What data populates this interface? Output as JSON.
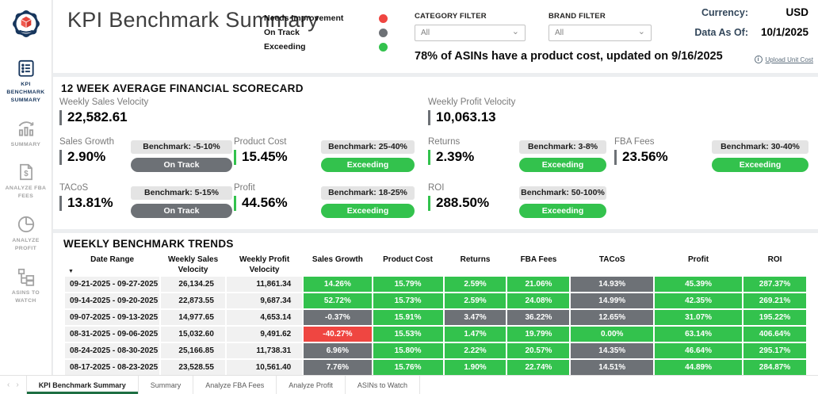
{
  "colors": {
    "green": "#33C24D",
    "gray": "#6D7176",
    "red": "#EF4641",
    "navy": "#17365D",
    "dark_green": "#1E6F43",
    "slate": "#33475B"
  },
  "header": {
    "title": "KPI Benchmark Summary",
    "legend": [
      {
        "label": "Needs Improvement",
        "color": "red"
      },
      {
        "label": "On Track",
        "color": "gray"
      },
      {
        "label": "Exceeding",
        "color": "green"
      }
    ],
    "category_filter": {
      "label": "CATEGORY FILTER",
      "value": "All"
    },
    "brand_filter": {
      "label": "BRAND FILTER",
      "value": "All"
    },
    "currency_label": "Currency:",
    "currency_value": "USD",
    "data_as_of_label": "Data As Of:",
    "data_as_of_value": "10/1/2025",
    "asin_banner": "78% of ASINs have a product cost, updated on 9/16/2025",
    "upload_link": "Upload Unit Cost"
  },
  "sidebar": {
    "items": [
      {
        "label": "KPI BENCHMARK SUMMARY",
        "icon": "clipboard-list-icon",
        "active": true
      },
      {
        "label": "SUMMARY",
        "icon": "bar-chart-icon",
        "active": false
      },
      {
        "label": "ANALYZE FBA FEES",
        "icon": "invoice-dollar-icon",
        "active": false
      },
      {
        "label": "ANALYZE PROFIT",
        "icon": "pie-chart-icon",
        "active": false
      },
      {
        "label": "ASINS TO WATCH",
        "icon": "hierarchy-icon",
        "active": false
      }
    ]
  },
  "scorecard": {
    "title": "12 WEEK AVERAGE FINANCIAL SCORECARD",
    "velocities": [
      {
        "label": "Weekly Sales Velocity",
        "value": "22,582.61",
        "bar": "gray"
      },
      {
        "label": "Weekly Profit Velocity",
        "value": "10,063.13",
        "bar": "gray"
      }
    ],
    "metrics": [
      {
        "label": "Sales Growth",
        "value": "2.90%",
        "bar": "gray",
        "benchmark": "Benchmark: -5-10%",
        "status": "On Track",
        "status_color": "gray"
      },
      {
        "label": "Product Cost",
        "value": "15.45%",
        "bar": "green",
        "benchmark": "Benchmark: 25-40%",
        "status": "Exceeding",
        "status_color": "green"
      },
      {
        "label": "Returns",
        "value": "2.39%",
        "bar": "green",
        "benchmark": "Benchmark: 3-8%",
        "status": "Exceeding",
        "status_color": "green"
      },
      {
        "label": "FBA Fees",
        "value": "23.56%",
        "bar": "gray",
        "benchmark": "Benchmark: 30-40%",
        "status": "Exceeding",
        "status_color": "green"
      },
      {
        "label": "TACoS",
        "value": "13.81%",
        "bar": "gray",
        "benchmark": "Benchmark: 5-15%",
        "status": "On Track",
        "status_color": "gray"
      },
      {
        "label": "Profit",
        "value": "44.56%",
        "bar": "green",
        "benchmark": "Benchmark: 18-25%",
        "status": "Exceeding",
        "status_color": "green"
      },
      {
        "label": "ROI",
        "value": "288.50%",
        "bar": "green",
        "benchmark": "Benchmark: 50-100%",
        "status": "Exceeding",
        "status_color": "green"
      }
    ]
  },
  "trends": {
    "title": "WEEKLY BENCHMARK TRENDS",
    "columns": [
      "Date Range",
      "Weekly Sales Velocity",
      "Weekly Profit Velocity",
      "Sales Growth",
      "Product Cost",
      "Returns",
      "FBA Fees",
      "TACoS",
      "Profit",
      "ROI"
    ],
    "rows": [
      {
        "date": "09-21-2025 - 09-27-2025",
        "wsv": "26,134.25",
        "wpv": "11,861.34",
        "cells": [
          {
            "v": "14.26%",
            "c": "green"
          },
          {
            "v": "15.79%",
            "c": "green"
          },
          {
            "v": "2.59%",
            "c": "green"
          },
          {
            "v": "21.06%",
            "c": "green"
          },
          {
            "v": "14.93%",
            "c": "gray"
          },
          {
            "v": "45.39%",
            "c": "green"
          },
          {
            "v": "287.37%",
            "c": "green"
          }
        ]
      },
      {
        "date": "09-14-2025 - 09-20-2025",
        "wsv": "22,873.55",
        "wpv": "9,687.34",
        "cells": [
          {
            "v": "52.72%",
            "c": "green"
          },
          {
            "v": "15.73%",
            "c": "green"
          },
          {
            "v": "2.59%",
            "c": "green"
          },
          {
            "v": "24.08%",
            "c": "green"
          },
          {
            "v": "14.99%",
            "c": "gray"
          },
          {
            "v": "42.35%",
            "c": "green"
          },
          {
            "v": "269.21%",
            "c": "green"
          }
        ]
      },
      {
        "date": "09-07-2025 - 09-13-2025",
        "wsv": "14,977.65",
        "wpv": "4,653.14",
        "cells": [
          {
            "v": "-0.37%",
            "c": "gray"
          },
          {
            "v": "15.91%",
            "c": "green"
          },
          {
            "v": "3.47%",
            "c": "gray"
          },
          {
            "v": "36.22%",
            "c": "gray"
          },
          {
            "v": "12.65%",
            "c": "gray"
          },
          {
            "v": "31.07%",
            "c": "green"
          },
          {
            "v": "195.22%",
            "c": "green"
          }
        ]
      },
      {
        "date": "08-31-2025 - 09-06-2025",
        "wsv": "15,032.60",
        "wpv": "9,491.62",
        "cells": [
          {
            "v": "-40.27%",
            "c": "red"
          },
          {
            "v": "15.53%",
            "c": "green"
          },
          {
            "v": "1.47%",
            "c": "green"
          },
          {
            "v": "19.79%",
            "c": "green"
          },
          {
            "v": "0.00%",
            "c": "green"
          },
          {
            "v": "63.14%",
            "c": "green"
          },
          {
            "v": "406.64%",
            "c": "green"
          }
        ]
      },
      {
        "date": "08-24-2025 - 08-30-2025",
        "wsv": "25,166.85",
        "wpv": "11,738.31",
        "cells": [
          {
            "v": "6.96%",
            "c": "gray"
          },
          {
            "v": "15.80%",
            "c": "green"
          },
          {
            "v": "2.22%",
            "c": "green"
          },
          {
            "v": "20.57%",
            "c": "green"
          },
          {
            "v": "14.35%",
            "c": "gray"
          },
          {
            "v": "46.64%",
            "c": "green"
          },
          {
            "v": "295.17%",
            "c": "green"
          }
        ]
      },
      {
        "date": "08-17-2025 - 08-23-2025",
        "wsv": "23,528.55",
        "wpv": "10,561.40",
        "cells": [
          {
            "v": "7.76%",
            "c": "gray"
          },
          {
            "v": "15.76%",
            "c": "green"
          },
          {
            "v": "1.90%",
            "c": "green"
          },
          {
            "v": "22.74%",
            "c": "green"
          },
          {
            "v": "14.51%",
            "c": "gray"
          },
          {
            "v": "44.89%",
            "c": "green"
          },
          {
            "v": "284.87%",
            "c": "green"
          }
        ]
      }
    ]
  },
  "tabs": {
    "items": [
      {
        "label": "KPI Benchmark Summary",
        "active": true
      },
      {
        "label": "Summary",
        "active": false
      },
      {
        "label": "Analyze FBA Fees",
        "active": false
      },
      {
        "label": "Analyze Profit",
        "active": false
      },
      {
        "label": "ASINs to Watch",
        "active": false
      }
    ]
  }
}
